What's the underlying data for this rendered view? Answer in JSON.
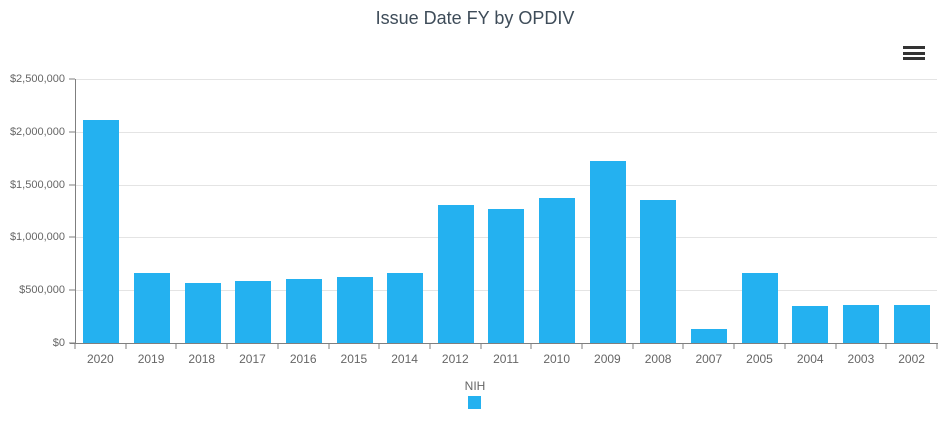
{
  "chart_data": {
    "type": "bar",
    "title": "Issue Date FY by OPDIV",
    "categories": [
      "2020",
      "2019",
      "2018",
      "2017",
      "2016",
      "2015",
      "2014",
      "2012",
      "2011",
      "2010",
      "2009",
      "2008",
      "2007",
      "2005",
      "2004",
      "2003",
      "2002"
    ],
    "series": [
      {
        "name": "NIH",
        "color": "#24B1F0",
        "values": [
          2115000,
          660000,
          565000,
          590000,
          605000,
          625000,
          665000,
          1310000,
          1265000,
          1375000,
          1720000,
          1355000,
          135000,
          665000,
          355000,
          360000,
          360000
        ]
      }
    ],
    "xlabel": "",
    "ylabel": "",
    "ylim": [
      0,
      2500000
    ],
    "ytick_interval": 500000,
    "ytick_labels": [
      "$0",
      "$500,000",
      "$1,000,000",
      "$1,500,000",
      "$2,000,000",
      "$2,500,000"
    ],
    "grid": true,
    "legend_position": "bottom-center"
  },
  "legend": {
    "items": [
      {
        "label": "NIH",
        "color": "#24B1F0"
      }
    ]
  },
  "icons": {
    "menu": "hamburger-icon"
  },
  "colors": {
    "bar": "#24B1F0",
    "title": "#3E4C59",
    "axis_label": "#666666",
    "grid": "#E4E4E4",
    "axis_line": "#7F7F7F",
    "menu_icon": "#333333",
    "background": "#FFFFFF"
  }
}
